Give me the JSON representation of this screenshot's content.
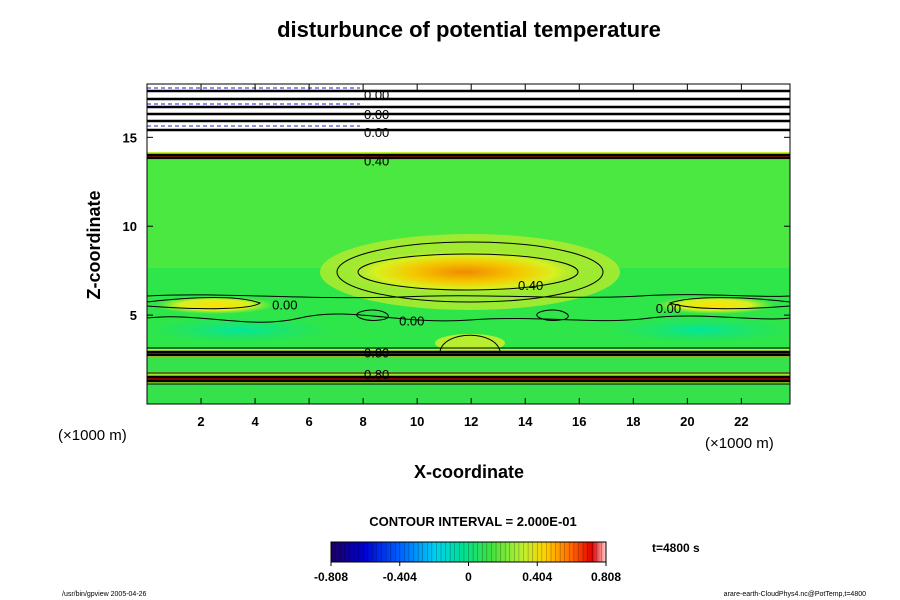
{
  "chart_data": {
    "type": "heatmap",
    "title": "disturbunce of potential temperature",
    "xlabel": "X-coordinate",
    "ylabel": "Z-coordinate",
    "x_unit": "(×1000 m)",
    "y_unit": "(×1000 m)",
    "xlim": [
      0,
      23.8
    ],
    "ylim": [
      0,
      18
    ],
    "x_ticks": [
      2,
      4,
      6,
      8,
      10,
      12,
      14,
      16,
      18,
      20,
      22
    ],
    "y_ticks": [
      5,
      10,
      15
    ],
    "contour_interval_label": "CONTOUR INTERVAL = 2.000E-01",
    "time_label": "t=4800 s",
    "colorbar": {
      "min": -0.808,
      "max": 0.808,
      "tick_values": [
        -0.808,
        -0.404,
        0,
        0.404,
        0.808
      ],
      "tick_labels": [
        "-0.808",
        "-0.404",
        "0",
        "0.404",
        "0.808"
      ]
    },
    "contour_labels": [
      {
        "text": "0.40",
        "x": 14.2,
        "z": 6.7
      },
      {
        "text": "0.00",
        "x": 5.1,
        "z": 5.6
      },
      {
        "text": "0.00",
        "x": 9.8,
        "z": 4.7
      },
      {
        "text": "0.00",
        "x": 19.3,
        "z": 5.4
      },
      {
        "text": "0.80",
        "x": 8.5,
        "z": 2.9
      },
      {
        "text": "0.80",
        "x": 8.5,
        "z": 1.7
      },
      {
        "text": "0.40",
        "x": 8.5,
        "z": 13.7
      },
      {
        "text": "0.00",
        "x": 8.5,
        "z": 15.3
      },
      {
        "text": "0.00",
        "x": 8.5,
        "z": 16.3
      },
      {
        "text": "0.00",
        "x": 8.5,
        "z": 17.4
      }
    ]
  },
  "footer": {
    "left": "/usr/bin/gpview 2005-04-26",
    "right": "arare-earth-CloudPhys4.nc@PotTemp,t=4800"
  }
}
